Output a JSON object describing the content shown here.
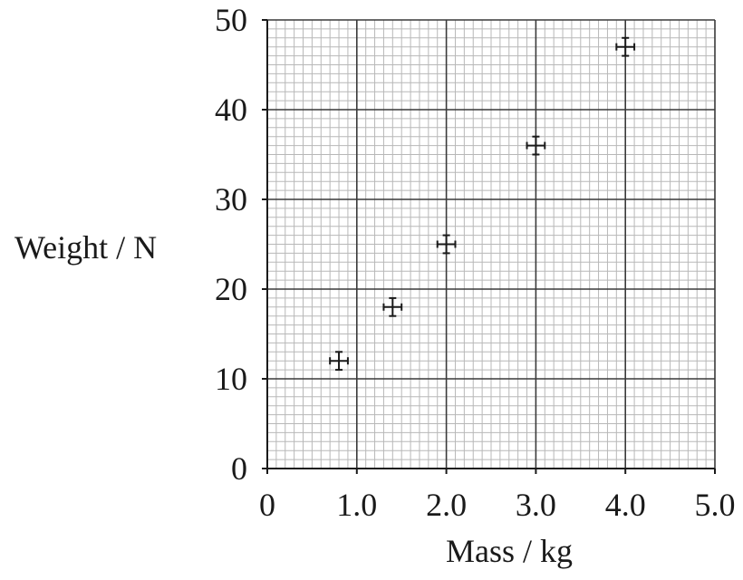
{
  "chart_data": {
    "type": "scatter",
    "xlabel": "Mass / kg",
    "ylabel": "Weight / N",
    "xlim": [
      0,
      5.0
    ],
    "ylim": [
      0,
      50
    ],
    "x_ticks": [
      "0",
      "1.0",
      "2.0",
      "3.0",
      "4.0",
      "5.0"
    ],
    "y_ticks": [
      "0",
      "10",
      "20",
      "30",
      "40",
      "50"
    ],
    "grid": true,
    "error_bars": true,
    "points": [
      {
        "x": 0.8,
        "y": 12,
        "x_err": 0.1,
        "y_err": 1.0
      },
      {
        "x": 1.4,
        "y": 18,
        "x_err": 0.1,
        "y_err": 1.0
      },
      {
        "x": 2.0,
        "y": 25,
        "x_err": 0.1,
        "y_err": 1.0
      },
      {
        "x": 3.0,
        "y": 36,
        "x_err": 0.1,
        "y_err": 1.0
      },
      {
        "x": 4.0,
        "y": 47,
        "x_err": 0.1,
        "y_err": 1.0
      }
    ],
    "colors": {
      "major_grid": "#3a3a3a",
      "minor_grid": "#b8b8b8",
      "marks": "#1a1a1a"
    }
  }
}
